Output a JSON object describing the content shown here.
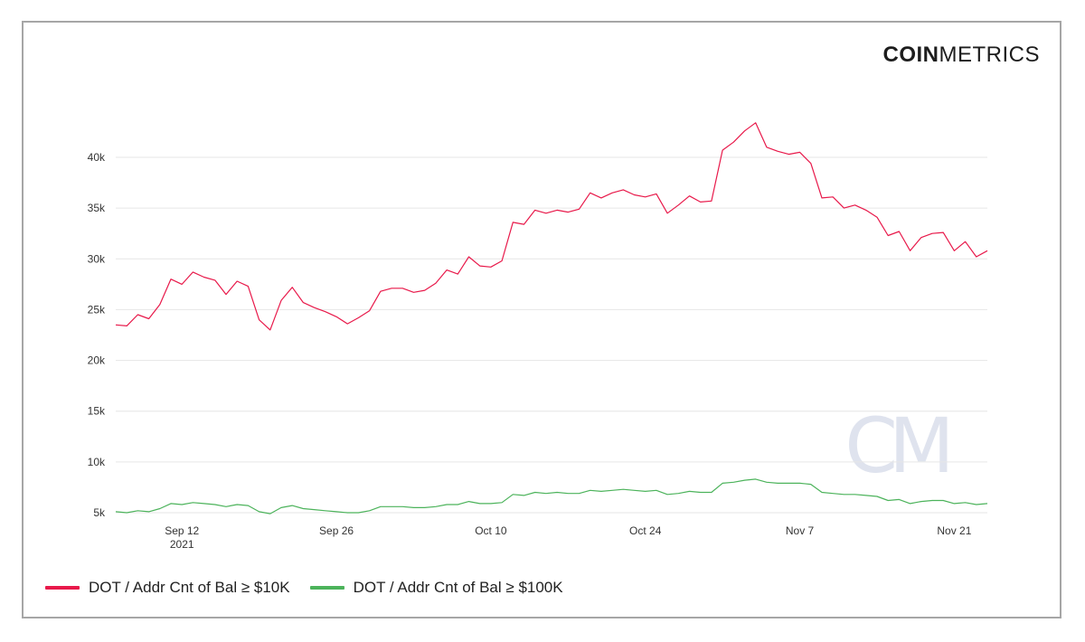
{
  "brand": {
    "bold": "COIN",
    "regular": "METRICS",
    "watermark": "CM"
  },
  "colors": {
    "series1": "#e8194a",
    "series2": "#4cb35b",
    "grid": "#e6e6e6",
    "watermark": "#dfe3ee"
  },
  "chart_data": {
    "type": "line",
    "x_start": "2021-09-06",
    "x_end": "2021-11-24",
    "yticks": [
      5000,
      10000,
      15000,
      20000,
      25000,
      30000,
      35000,
      40000
    ],
    "ytick_labels": [
      "5k",
      "10k",
      "15k",
      "20k",
      "25k",
      "30k",
      "35k",
      "40k"
    ],
    "ylim": [
      5000,
      45000
    ],
    "xticks": [
      {
        "date": "2021-09-12",
        "label": "Sep 12",
        "sub": "2021"
      },
      {
        "date": "2021-09-26",
        "label": "Sep 26",
        "sub": ""
      },
      {
        "date": "2021-10-10",
        "label": "Oct 10",
        "sub": ""
      },
      {
        "date": "2021-10-24",
        "label": "Oct 24",
        "sub": ""
      },
      {
        "date": "2021-11-07",
        "label": "Nov 7",
        "sub": ""
      },
      {
        "date": "2021-11-21",
        "label": "Nov 21",
        "sub": ""
      }
    ],
    "grid": true,
    "legend_position": "bottom-left",
    "series": [
      {
        "name": "DOT / Addr Cnt of Bal ≥ $10K",
        "color": "#e8194a",
        "values": [
          23500,
          23400,
          24500,
          24100,
          25500,
          28000,
          27500,
          28700,
          28200,
          27900,
          26500,
          27800,
          27300,
          24000,
          23000,
          25900,
          27200,
          25700,
          25200,
          24800,
          24300,
          23600,
          24200,
          24900,
          26800,
          27100,
          27100,
          26700,
          26900,
          27600,
          28900,
          28500,
          30200,
          29300,
          29200,
          29800,
          33600,
          33400,
          34800,
          34500,
          34800,
          34600,
          34900,
          36500,
          36000,
          36500,
          36800,
          36300,
          36100,
          36400,
          34500,
          35300,
          36200,
          35600,
          35700,
          40700,
          41500,
          42600,
          43400,
          41000,
          40600,
          40300,
          40500,
          39400,
          36000,
          36100,
          35000,
          35300,
          34800,
          34100,
          32300,
          32700,
          30800,
          32100,
          32500,
          32600,
          30800,
          31700,
          30200,
          30800
        ]
      },
      {
        "name": "DOT / Addr Cnt of Bal ≥ $100K",
        "color": "#4cb35b",
        "values": [
          5100,
          5000,
          5200,
          5100,
          5400,
          5900,
          5800,
          6000,
          5900,
          5800,
          5600,
          5800,
          5700,
          5100,
          4900,
          5500,
          5700,
          5400,
          5300,
          5200,
          5100,
          5000,
          5000,
          5200,
          5600,
          5600,
          5600,
          5500,
          5500,
          5600,
          5800,
          5800,
          6100,
          5900,
          5900,
          6000,
          6800,
          6700,
          7000,
          6900,
          7000,
          6900,
          6900,
          7200,
          7100,
          7200,
          7300,
          7200,
          7100,
          7200,
          6800,
          6900,
          7100,
          7000,
          7000,
          7900,
          8000,
          8200,
          8300,
          8000,
          7900,
          7900,
          7900,
          7800,
          7000,
          6900,
          6800,
          6800,
          6700,
          6600,
          6200,
          6300,
          5900,
          6100,
          6200,
          6200,
          5900,
          6000,
          5800,
          5900
        ]
      }
    ]
  }
}
